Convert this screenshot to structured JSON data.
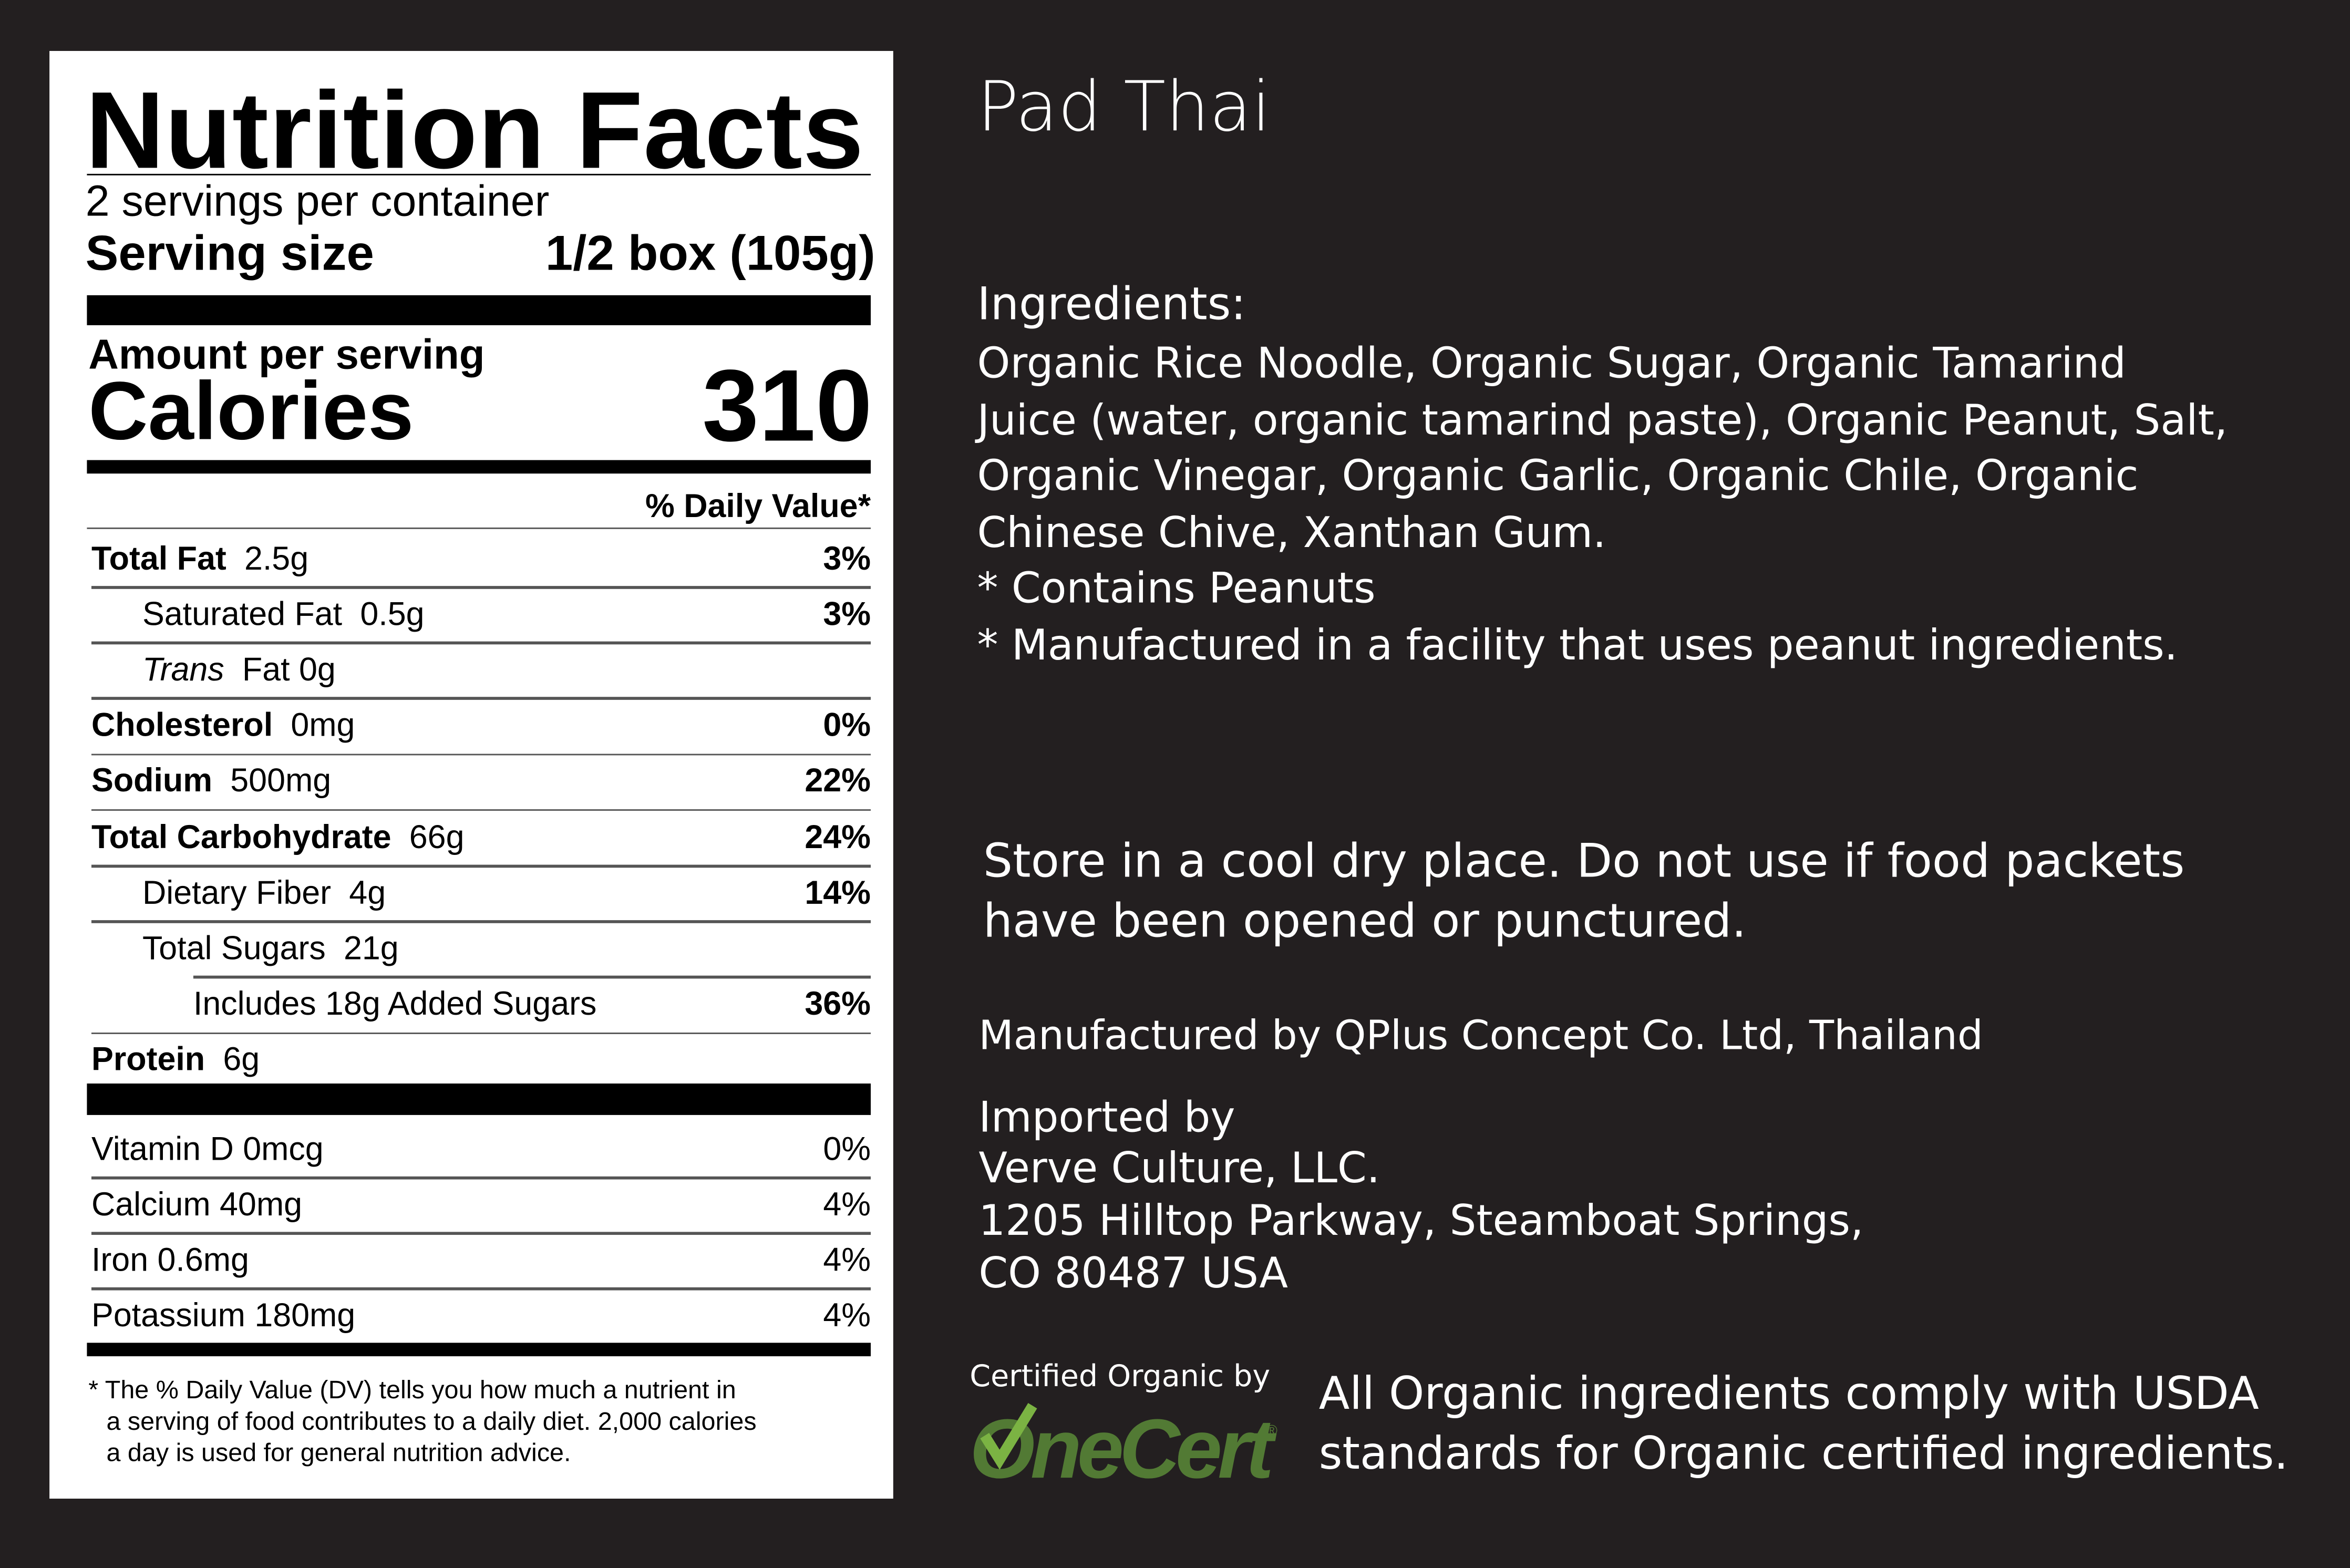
{
  "label": {
    "title": "Nutrition Facts",
    "servings_per_container": "2 servings per container",
    "serving_size_label": "Serving size",
    "serving_size_value": "1/2 box (105g)",
    "amount_per_serving": "Amount per serving",
    "calories_label": "Calories",
    "calories_value": "310",
    "dv_header": "% Daily Value*",
    "nutrients": [
      {
        "name": "Total Fat",
        "amount": "2.5g",
        "dv": "3%",
        "bold": true,
        "indent": 0
      },
      {
        "name": "Saturated Fat",
        "amount": "0.5g",
        "dv": "3%",
        "bold": false,
        "indent": 1
      },
      {
        "name": "Trans",
        "amount": "Fat 0g",
        "dv": "",
        "bold": false,
        "indent": 1,
        "italic": true
      },
      {
        "name": "Cholesterol",
        "amount": "0mg",
        "dv": "0%",
        "bold": true,
        "indent": 0
      },
      {
        "name": "Sodium",
        "amount": "500mg",
        "dv": "22%",
        "bold": true,
        "indent": 0
      },
      {
        "name": "Total Carbohydrate",
        "amount": "66g",
        "dv": "24%",
        "bold": true,
        "indent": 0
      },
      {
        "name": "Dietary Fiber",
        "amount": "4g",
        "dv": "14%",
        "bold": false,
        "indent": 1
      },
      {
        "name": "Total Sugars",
        "amount": "21g",
        "dv": "",
        "bold": false,
        "indent": 1
      },
      {
        "name": "Includes 18g Added Sugars",
        "amount": "",
        "dv": "36%",
        "bold": false,
        "indent": 2
      },
      {
        "name": "Protein",
        "amount": "6g",
        "dv": "",
        "bold": true,
        "indent": 0
      }
    ],
    "vitamins": [
      {
        "name": "Vitamin D 0mcg",
        "dv": "0%"
      },
      {
        "name": "Calcium 40mg",
        "dv": "4%"
      },
      {
        "name": "Iron 0.6mg",
        "dv": "4%"
      },
      {
        "name": "Potassium 180mg",
        "dv": "4%"
      }
    ],
    "footnote": [
      "* The % Daily Value (DV) tells you how much a nutrient in",
      "a serving of food contributes to a daily diet. 2,000 calories",
      "a day is used for general nutrition advice."
    ]
  },
  "product": {
    "name": "Pad Thai",
    "ingredients_heading": "Ingredients:",
    "ingredients_lines": [
      "Organic Rice Noodle, Organic Sugar, Organic Tamarind",
      "Juice (water, organic tamarind paste), Organic Peanut, Salt,",
      "Organic Vinegar, Organic Garlic, Organic Chile, Organic",
      "Chinese Chive, Xanthan Gum.",
      "* Contains Peanuts",
      "* Manufactured in a facility that uses peanut ingredients."
    ],
    "storage_lines": [
      "Store in a cool dry place.  Do not use if food packets",
      "have been opened or punctured."
    ],
    "manufacturer": "Manufactured by QPlus Concept Co. Ltd, Thailand",
    "imported_by": "Imported by",
    "importer_lines": [
      "Verve Culture, LLC.",
      "1205 Hilltop Parkway, Steamboat Springs,",
      "CO 80487  USA"
    ],
    "certified_by": "Certified Organic by",
    "cert_logo_text": "OneCert",
    "organic_lines": [
      "All Organic ingredients comply with USDA",
      "standards for Organic certified ingredients."
    ]
  },
  "colors": {
    "background": "#231f20",
    "label": "#ffffff",
    "onecert_green": "#527a34",
    "check_green": "#7bb343"
  }
}
